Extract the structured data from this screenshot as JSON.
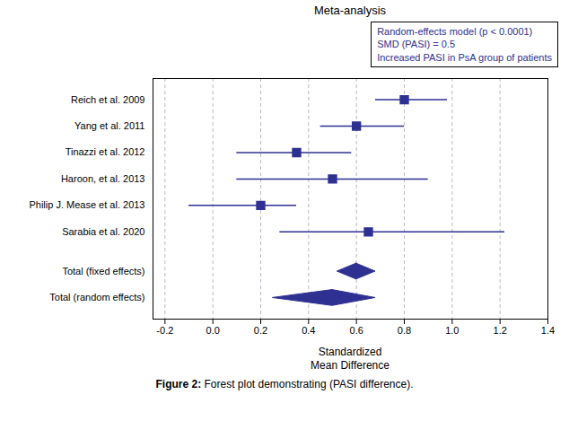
{
  "chart_data": {
    "type": "forest",
    "title": "Meta-analysis",
    "xlabel": "Standardized\nMean Difference",
    "annotations": [
      "Random-effects model (p < 0.0001)",
      "SMD (PASI) = 0.5",
      "Increased PASI in PsA group of patients"
    ],
    "caption_label": "Figure 2:",
    "caption": "Forest plot demonstrating (PASI difference).",
    "color": "#2E3191",
    "grid": true,
    "xlim": [
      -0.25,
      1.4
    ],
    "xticks": [
      -0.2,
      {
        "value": 0,
        "label": "0.0"
      },
      0.2,
      0.4,
      0.6,
      0.8,
      {
        "value": 1,
        "label": "1.0"
      },
      1.2,
      1.4
    ],
    "studies": [
      {
        "label": "Reich et al. 2009",
        "smd": 0.8,
        "ci_low": 0.68,
        "ci_high": 0.98
      },
      {
        "label": "Yang et al. 2011",
        "smd": 0.6,
        "ci_low": 0.45,
        "ci_high": 0.8
      },
      {
        "label": "Tinazzi et al. 2012",
        "smd": 0.35,
        "ci_low": 0.1,
        "ci_high": 0.58
      },
      {
        "label": "Haroon, et al. 2013",
        "smd": 0.5,
        "ci_low": 0.1,
        "ci_high": 0.9
      },
      {
        "label": "Philip J. Mease et al. 2013",
        "smd": 0.2,
        "ci_low": -0.1,
        "ci_high": 0.35
      },
      {
        "label": "Sarabia et al. 2020",
        "smd": 0.65,
        "ci_low": 0.28,
        "ci_high": 1.22
      }
    ],
    "totals": [
      {
        "label": "Total (fixed effects)",
        "smd": 0.6,
        "ci_low": 0.52,
        "ci_high": 0.68
      },
      {
        "label": "Total (random effects)",
        "smd": 0.5,
        "ci_low": 0.25,
        "ci_high": 0.68
      }
    ]
  }
}
